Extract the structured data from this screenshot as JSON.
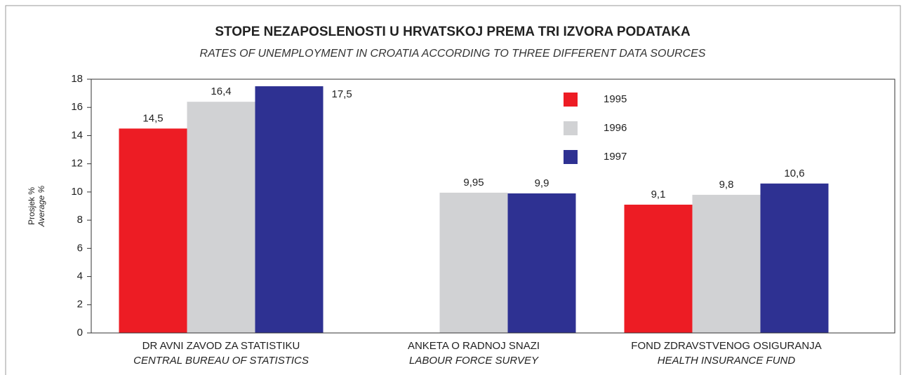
{
  "chart_data": {
    "type": "bar",
    "title": "STOPE NEZAPOSLENOSTI U HRVATSKOJ PREMA TRI IZVORA PODATAKA",
    "subtitle": "RATES OF UNEMPLOYMENT IN CROATIA ACCORDING TO THREE DIFFERENT DATA SOURCES",
    "ylabel": "Prosjek %",
    "ylabel_en": "Average %",
    "categories": [
      "DR AVNI ZAVOD ZA STATISTIKU",
      "ANKETA O RADNOJ SNAZI",
      "FOND ZDRAVSTVENOG OSIGURANJA"
    ],
    "category_subtitles": [
      "CENTRAL BUREAU OF STATISTICS",
      "LABOUR FORCE SURVEY",
      "HEALTH INSURANCE FUND"
    ],
    "series": [
      {
        "name": "1995",
        "color": "#ed1c24",
        "values": [
          14.5,
          null,
          9.1
        ],
        "value_labels": [
          "14,5",
          null,
          "9,1"
        ]
      },
      {
        "name": "1996",
        "color": "#d1d2d4",
        "values": [
          16.4,
          9.95,
          9.8
        ],
        "value_labels": [
          "16,4",
          "9,95",
          "9,8"
        ]
      },
      {
        "name": "1997",
        "color": "#2e3192",
        "values": [
          17.5,
          9.9,
          10.6
        ],
        "value_labels": [
          "17,5",
          "9,9",
          "10,6"
        ]
      }
    ],
    "ylim": [
      0,
      18
    ],
    "yticks": [
      0,
      2,
      4,
      6,
      8,
      10,
      12,
      14,
      16,
      18
    ],
    "grid": false,
    "legend": "top-right"
  }
}
